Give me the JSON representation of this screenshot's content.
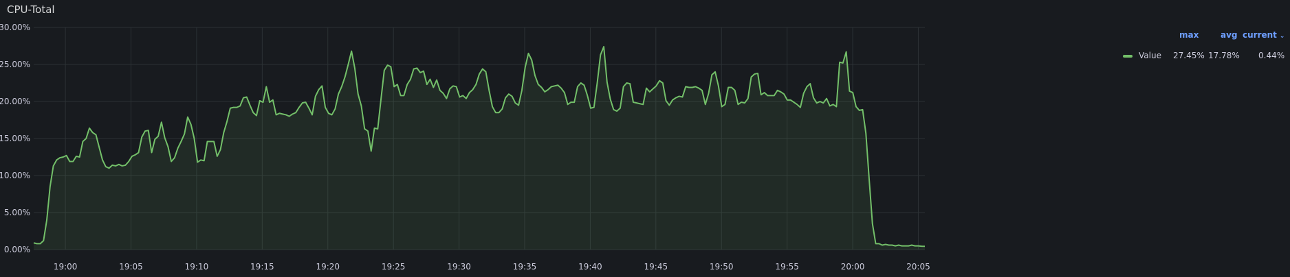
{
  "panel": {
    "title": "CPU-Total"
  },
  "legend": {
    "columns": {
      "max": "max",
      "avg": "avg",
      "current": "current"
    },
    "sort_icon": "chevron-down-icon",
    "rows": [
      {
        "name": "Value",
        "color": "#73bf69",
        "max": "27.45%",
        "avg": "17.78%",
        "current": "0.44%"
      }
    ]
  },
  "colors": {
    "background": "#181b1f",
    "grid": "#2c3235",
    "series": "#73bf69",
    "text": "#ccccdc",
    "legend_header": "#6e9fff"
  },
  "chart_data": {
    "type": "area",
    "title": "CPU-Total",
    "xlabel": "",
    "ylabel": "",
    "ylim": [
      0,
      30
    ],
    "yticks": [
      "0.00%",
      "5.00%",
      "10.00%",
      "15.00%",
      "20.00%",
      "25.00%",
      "30.00%"
    ],
    "ytick_values": [
      0,
      5,
      10,
      15,
      20,
      25,
      30
    ],
    "xlim": [
      "18:57:35",
      "20:05:30"
    ],
    "xticks": [
      "19:00",
      "19:05",
      "19:10",
      "19:15",
      "19:20",
      "19:25",
      "19:30",
      "19:35",
      "19:40",
      "19:45",
      "19:50",
      "19:55",
      "20:00",
      "20:05"
    ],
    "grid": true,
    "legend_position": "right",
    "series": [
      {
        "name": "Value",
        "color": "#73bf69",
        "x_start": "18:57:35",
        "x_end": "20:05:30",
        "values": [
          0.9,
          0.8,
          0.8,
          1.2,
          4.0,
          8.5,
          11.3,
          12.1,
          12.4,
          12.5,
          12.7,
          11.9,
          11.9,
          12.6,
          12.5,
          14.6,
          15.0,
          16.4,
          15.8,
          15.5,
          13.8,
          12.1,
          11.2,
          11.0,
          11.4,
          11.3,
          11.5,
          11.3,
          11.4,
          11.9,
          12.6,
          12.8,
          13.1,
          15.2,
          16.0,
          16.1,
          13.1,
          14.9,
          15.3,
          17.2,
          15.1,
          13.9,
          11.9,
          12.4,
          13.7,
          14.6,
          15.6,
          17.9,
          16.9,
          15.0,
          11.8,
          12.1,
          12.0,
          14.6,
          14.6,
          14.6,
          12.6,
          13.5,
          15.8,
          17.3,
          19.1,
          19.2,
          19.2,
          19.4,
          20.5,
          20.6,
          19.5,
          18.5,
          18.1,
          20.1,
          19.9,
          22.0,
          19.9,
          20.2,
          18.2,
          18.4,
          18.3,
          18.2,
          18.0,
          18.3,
          18.5,
          19.2,
          19.8,
          19.9,
          19.1,
          18.2,
          20.7,
          21.6,
          22.1,
          19.2,
          18.4,
          18.2,
          19.0,
          21.0,
          22.0,
          23.3,
          25.0,
          26.8,
          24.5,
          21.0,
          19.4,
          16.3,
          16.0,
          13.3,
          16.4,
          16.3,
          20.3,
          24.2,
          24.9,
          24.7,
          22.0,
          22.3,
          20.8,
          20.8,
          22.3,
          23.0,
          24.4,
          24.5,
          23.9,
          24.1,
          22.3,
          23.0,
          21.9,
          22.9,
          21.5,
          21.1,
          20.4,
          21.7,
          22.1,
          22.0,
          20.6,
          20.8,
          20.4,
          21.2,
          21.6,
          22.3,
          23.7,
          24.4,
          24.0,
          21.5,
          19.3,
          18.5,
          18.5,
          19.0,
          20.5,
          21.0,
          20.7,
          19.8,
          19.5,
          21.5,
          24.6,
          26.5,
          25.6,
          23.5,
          22.3,
          21.9,
          21.3,
          21.6,
          22.0,
          22.1,
          22.2,
          21.8,
          21.2,
          19.6,
          19.9,
          19.9,
          22.0,
          22.5,
          22.2,
          20.8,
          19.1,
          19.2,
          22.5,
          26.3,
          27.4,
          22.6,
          20.3,
          18.9,
          18.7,
          19.1,
          22.0,
          22.5,
          22.4,
          19.9,
          19.8,
          19.7,
          19.6,
          21.8,
          21.3,
          21.7,
          22.1,
          22.8,
          22.5,
          20.1,
          19.5,
          20.2,
          20.5,
          20.7,
          20.6,
          22.0,
          21.9,
          21.9,
          22.0,
          21.8,
          21.5,
          19.6,
          21.1,
          23.6,
          24.0,
          22.1,
          19.3,
          19.6,
          21.9,
          21.9,
          21.5,
          19.6,
          19.9,
          19.8,
          20.4,
          23.3,
          23.7,
          23.8,
          20.9,
          21.2,
          20.8,
          20.8,
          20.8,
          21.5,
          21.3,
          21.0,
          20.2,
          20.2,
          19.9,
          19.6,
          19.2,
          21.1,
          22.0,
          22.4,
          20.5,
          19.8,
          20.0,
          19.8,
          20.4,
          19.4,
          19.6,
          19.3,
          25.3,
          25.2,
          26.7,
          21.4,
          21.2,
          19.3,
          18.8,
          18.9,
          15.7,
          9.5,
          3.5,
          0.8,
          0.8,
          0.6,
          0.7,
          0.6,
          0.6,
          0.5,
          0.6,
          0.5,
          0.5,
          0.5,
          0.6,
          0.5,
          0.5,
          0.45,
          0.44
        ]
      }
    ]
  }
}
